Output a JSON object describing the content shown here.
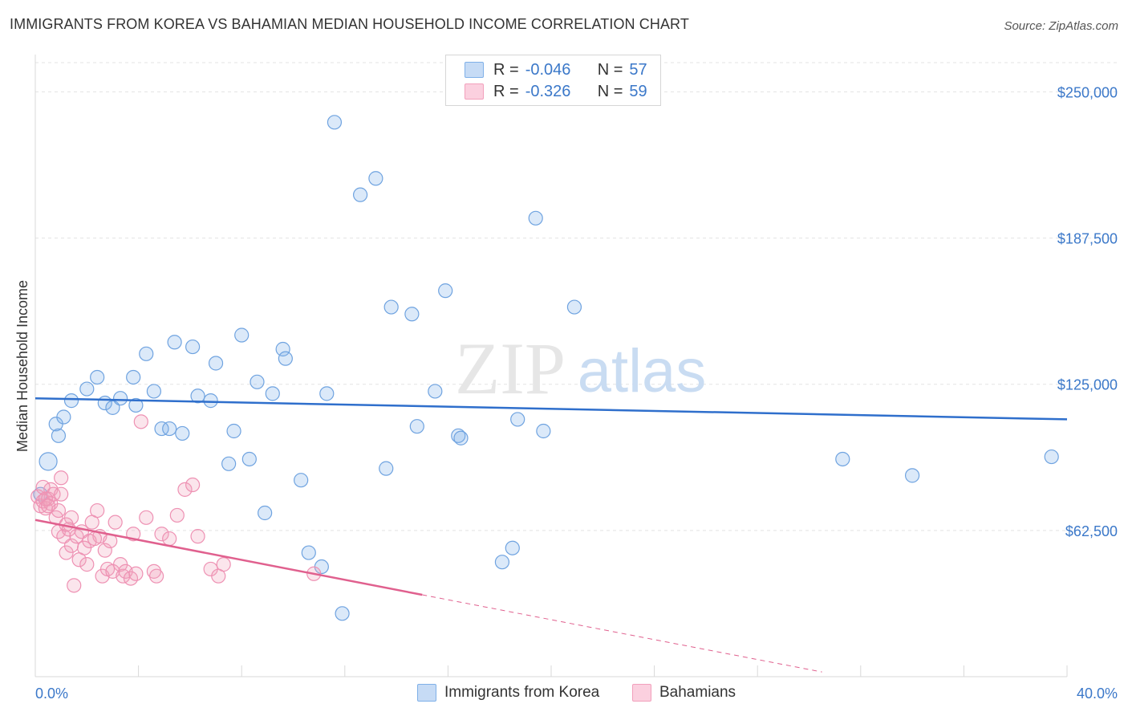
{
  "header": {
    "title": "IMMIGRANTS FROM KOREA VS BAHAMIAN MEDIAN HOUSEHOLD INCOME CORRELATION CHART",
    "source": "Source: ZipAtlas.com"
  },
  "watermark": {
    "zip": "ZIP",
    "atlas": "atlas"
  },
  "legend": {
    "korea": {
      "r_label": "R =",
      "r_value": "-0.046",
      "n_label": "N =",
      "n_value": "57"
    },
    "bahamians": {
      "r_label": "R =",
      "r_value": "-0.326",
      "n_label": "N =",
      "n_value": "59"
    }
  },
  "chart_data": {
    "type": "scatter",
    "ylabel": "Median Household Income",
    "xlim": [
      0,
      40
    ],
    "ylim": [
      0,
      262500
    ],
    "x_tick_labels": [
      "0.0%",
      "40.0%"
    ],
    "y_ticks": [
      {
        "value": 62500,
        "label": "$62,500"
      },
      {
        "value": 125000,
        "label": "$125,000"
      },
      {
        "value": 187500,
        "label": "$187,500"
      },
      {
        "value": 250000,
        "label": "$250,000"
      }
    ],
    "grid": true,
    "colors": {
      "korea": "#7fb0e8",
      "korea_line": "#2f6fcc",
      "bahamians": "#f2a0bc",
      "bahamians_line": "#e0608e"
    },
    "series": [
      {
        "name": "Immigrants from Korea",
        "color": "#7fb0e8",
        "trend": {
          "x": [
            0,
            40
          ],
          "y": [
            119000,
            110000
          ]
        },
        "points": [
          [
            0.5,
            92000
          ],
          [
            0.8,
            108000
          ],
          [
            0.9,
            103000
          ],
          [
            1.1,
            111000
          ],
          [
            1.4,
            118000
          ],
          [
            2.0,
            123000
          ],
          [
            2.4,
            128000
          ],
          [
            2.7,
            117000
          ],
          [
            3.0,
            115000
          ],
          [
            3.3,
            119000
          ],
          [
            3.8,
            128000
          ],
          [
            3.9,
            116000
          ],
          [
            4.3,
            138000
          ],
          [
            4.6,
            122000
          ],
          [
            4.9,
            106000
          ],
          [
            5.2,
            106000
          ],
          [
            5.4,
            143000
          ],
          [
            5.7,
            104000
          ],
          [
            6.1,
            141000
          ],
          [
            6.3,
            120000
          ],
          [
            6.8,
            118000
          ],
          [
            7.0,
            134000
          ],
          [
            7.5,
            91000
          ],
          [
            7.7,
            105000
          ],
          [
            8.0,
            146000
          ],
          [
            8.3,
            93000
          ],
          [
            8.6,
            126000
          ],
          [
            8.9,
            70000
          ],
          [
            9.2,
            121000
          ],
          [
            9.6,
            140000
          ],
          [
            9.7,
            136000
          ],
          [
            10.3,
            84000
          ],
          [
            10.6,
            53000
          ],
          [
            11.1,
            47000
          ],
          [
            11.3,
            121000
          ],
          [
            11.6,
            237000
          ],
          [
            11.9,
            27000
          ],
          [
            12.6,
            206000
          ],
          [
            13.2,
            213000
          ],
          [
            13.6,
            89000
          ],
          [
            13.8,
            158000
          ],
          [
            14.6,
            155000
          ],
          [
            14.8,
            107000
          ],
          [
            15.5,
            122000
          ],
          [
            15.9,
            165000
          ],
          [
            16.4,
            103000
          ],
          [
            16.5,
            102000
          ],
          [
            18.1,
            49000
          ],
          [
            18.5,
            55000
          ],
          [
            18.7,
            110000
          ],
          [
            19.4,
            196000
          ],
          [
            19.7,
            105000
          ],
          [
            20.9,
            158000
          ],
          [
            31.3,
            93000
          ],
          [
            34.0,
            86000
          ],
          [
            39.4,
            94000
          ],
          [
            0.2,
            78000
          ]
        ]
      },
      {
        "name": "Bahamians",
        "color": "#f2a0bc",
        "trend": {
          "x": [
            0,
            15
          ],
          "y": [
            67000,
            35000
          ]
        },
        "trend_dashed": {
          "x": [
            15,
            30.5
          ],
          "y": [
            35000,
            2000
          ]
        },
        "points": [
          [
            0.1,
            77000
          ],
          [
            0.2,
            73000
          ],
          [
            0.3,
            75000
          ],
          [
            0.4,
            72000
          ],
          [
            0.5,
            76000
          ],
          [
            0.6,
            74000
          ],
          [
            0.6,
            80000
          ],
          [
            0.7,
            78000
          ],
          [
            0.8,
            68000
          ],
          [
            0.9,
            71000
          ],
          [
            0.9,
            62000
          ],
          [
            1.0,
            85000
          ],
          [
            1.1,
            60000
          ],
          [
            1.2,
            53000
          ],
          [
            1.3,
            63000
          ],
          [
            1.4,
            56000
          ],
          [
            1.4,
            68000
          ],
          [
            1.5,
            39000
          ],
          [
            1.6,
            60000
          ],
          [
            1.7,
            50000
          ],
          [
            1.8,
            62000
          ],
          [
            1.9,
            55000
          ],
          [
            2.0,
            48000
          ],
          [
            2.1,
            58000
          ],
          [
            2.2,
            66000
          ],
          [
            2.4,
            71000
          ],
          [
            2.5,
            60000
          ],
          [
            2.6,
            43000
          ],
          [
            2.7,
            54000
          ],
          [
            2.8,
            46000
          ],
          [
            2.9,
            58000
          ],
          [
            3.0,
            45000
          ],
          [
            3.1,
            66000
          ],
          [
            3.3,
            48000
          ],
          [
            3.4,
            43000
          ],
          [
            3.5,
            45000
          ],
          [
            3.7,
            42000
          ],
          [
            3.8,
            61000
          ],
          [
            3.9,
            44000
          ],
          [
            4.1,
            109000
          ],
          [
            4.3,
            68000
          ],
          [
            4.6,
            45000
          ],
          [
            4.7,
            43000
          ],
          [
            4.9,
            61000
          ],
          [
            5.2,
            59000
          ],
          [
            5.5,
            69000
          ],
          [
            5.8,
            80000
          ],
          [
            6.1,
            82000
          ],
          [
            6.3,
            60000
          ],
          [
            6.8,
            46000
          ],
          [
            7.1,
            43000
          ],
          [
            7.3,
            48000
          ],
          [
            10.8,
            44000
          ],
          [
            0.3,
            81000
          ],
          [
            1.0,
            78000
          ],
          [
            0.4,
            76000
          ],
          [
            1.2,
            65000
          ],
          [
            2.3,
            59000
          ],
          [
            0.5,
            73000
          ]
        ]
      }
    ]
  },
  "bottom_legend": {
    "korea": "Immigrants from Korea",
    "bahamians": "Bahamians"
  }
}
